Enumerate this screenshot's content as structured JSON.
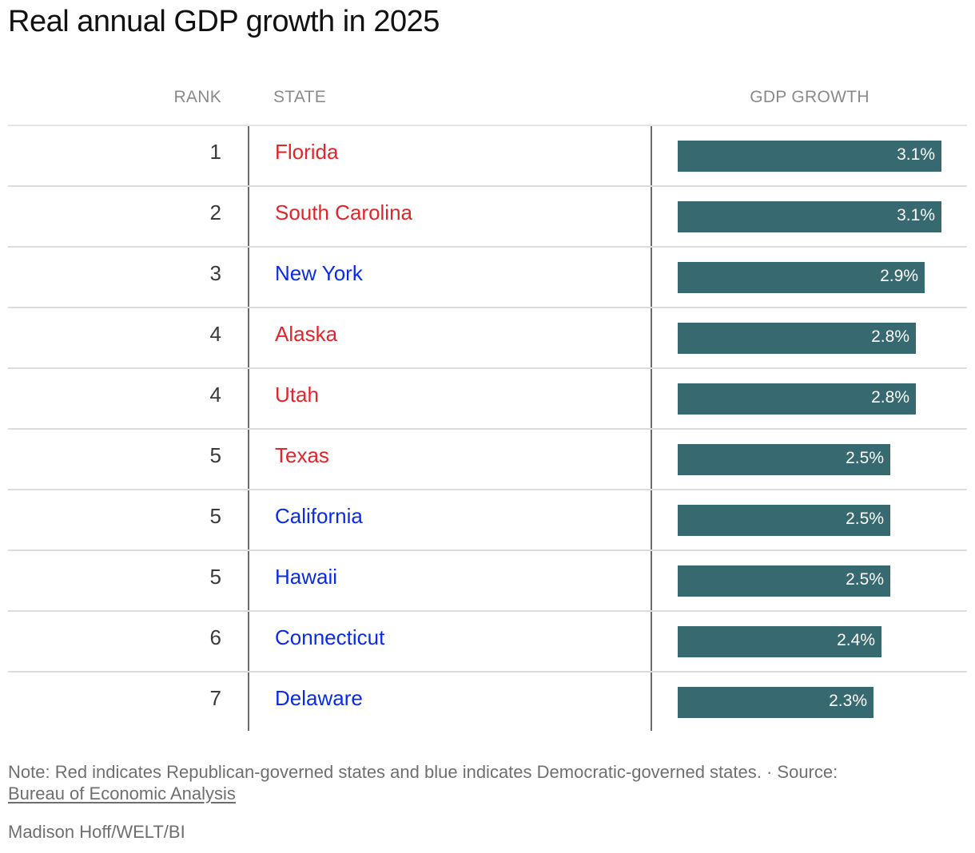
{
  "title": "Real annual GDP growth in 2025",
  "columns": {
    "rank": "RANK",
    "state": "STATE",
    "gdp": "GDP GROWTH"
  },
  "colors": {
    "republican": "#e0262a",
    "democratic": "#0a2be8",
    "bar": "#366a70"
  },
  "chart_data": {
    "type": "table",
    "title": "Real annual GDP growth in 2025",
    "columns": [
      "RANK",
      "STATE",
      "GDP GROWTH"
    ],
    "xlim": [
      0,
      3.1
    ],
    "rows": [
      {
        "rank": "1",
        "state": "Florida",
        "party": "republican",
        "value": 3.1,
        "label": "3.1%"
      },
      {
        "rank": "2",
        "state": "South Carolina",
        "party": "republican",
        "value": 3.1,
        "label": "3.1%"
      },
      {
        "rank": "3",
        "state": "New York",
        "party": "democratic",
        "value": 2.9,
        "label": "2.9%"
      },
      {
        "rank": "4",
        "state": "Alaska",
        "party": "republican",
        "value": 2.8,
        "label": "2.8%"
      },
      {
        "rank": "4",
        "state": "Utah",
        "party": "republican",
        "value": 2.8,
        "label": "2.8%"
      },
      {
        "rank": "5",
        "state": "Texas",
        "party": "republican",
        "value": 2.5,
        "label": "2.5%"
      },
      {
        "rank": "5",
        "state": "California",
        "party": "democratic",
        "value": 2.5,
        "label": "2.5%"
      },
      {
        "rank": "5",
        "state": "Hawaii",
        "party": "democratic",
        "value": 2.5,
        "label": "2.5%"
      },
      {
        "rank": "6",
        "state": "Connecticut",
        "party": "democratic",
        "value": 2.4,
        "label": "2.4%"
      },
      {
        "rank": "7",
        "state": "Delaware",
        "party": "democratic",
        "value": 2.3,
        "label": "2.3%"
      }
    ]
  },
  "footer": {
    "note": "Note: Red indicates Republican-governed states and blue indicates Democratic-governed states. · Source:",
    "source_link": "Bureau of Economic Analysis",
    "credit": "Madison Hoff/WELT/BI"
  }
}
